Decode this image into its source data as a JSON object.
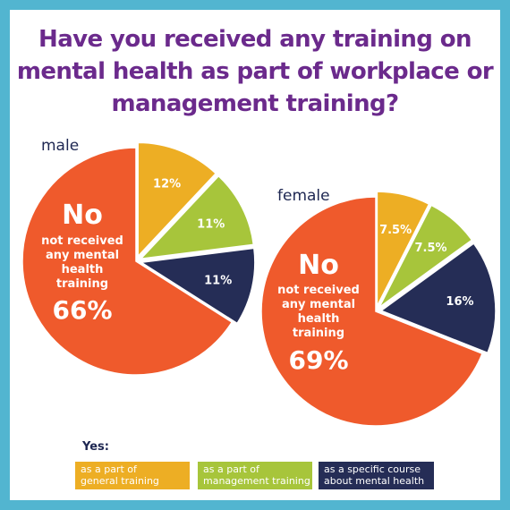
{
  "title": "Have you received any training on mental health as part of workplace or management training?",
  "colors": {
    "frame": "#52b5d0",
    "title": "#6b2a8c",
    "no": "#ef5a2c",
    "general": "#edae24",
    "management": "#a7c53b",
    "specific": "#252d56",
    "label_dark": "#1e2752",
    "label_light": "#ffffff"
  },
  "chart_data": [
    {
      "type": "pie",
      "title": "male",
      "slices": [
        {
          "category": "as a part of general training",
          "value": 12,
          "label": "12%"
        },
        {
          "category": "as a part of management training",
          "value": 11,
          "label": "11%"
        },
        {
          "category": "as a specific course about mental health",
          "value": 11,
          "label": "11%"
        },
        {
          "category": "No not received any mental health training",
          "value": 66,
          "label": "66%"
        }
      ],
      "no_heading": "No",
      "no_text": [
        "not received",
        "any mental",
        "health",
        "training"
      ]
    },
    {
      "type": "pie",
      "title": "female",
      "slices": [
        {
          "category": "as a part of general training",
          "value": 7.5,
          "label": "7.5%"
        },
        {
          "category": "as a part of management training",
          "value": 7.5,
          "label": "7.5%"
        },
        {
          "category": "as a specific course about mental health",
          "value": 16,
          "label": "16%"
        },
        {
          "category": "No not received any mental health training",
          "value": 69,
          "label": "69%"
        }
      ],
      "no_heading": "No",
      "no_text": [
        "not received",
        "any mental",
        "health",
        "training"
      ]
    }
  ],
  "legend": {
    "heading": "Yes:",
    "items": [
      {
        "label": "as a part of\ngeneral training",
        "color": "#edae24",
        "text_color": "#ffffff"
      },
      {
        "label": "as a part of\nmanagement training",
        "color": "#a7c53b",
        "text_color": "#ffffff"
      },
      {
        "label": "as a specific course\nabout mental health",
        "color": "#252d56",
        "text_color": "#ffffff"
      }
    ]
  }
}
